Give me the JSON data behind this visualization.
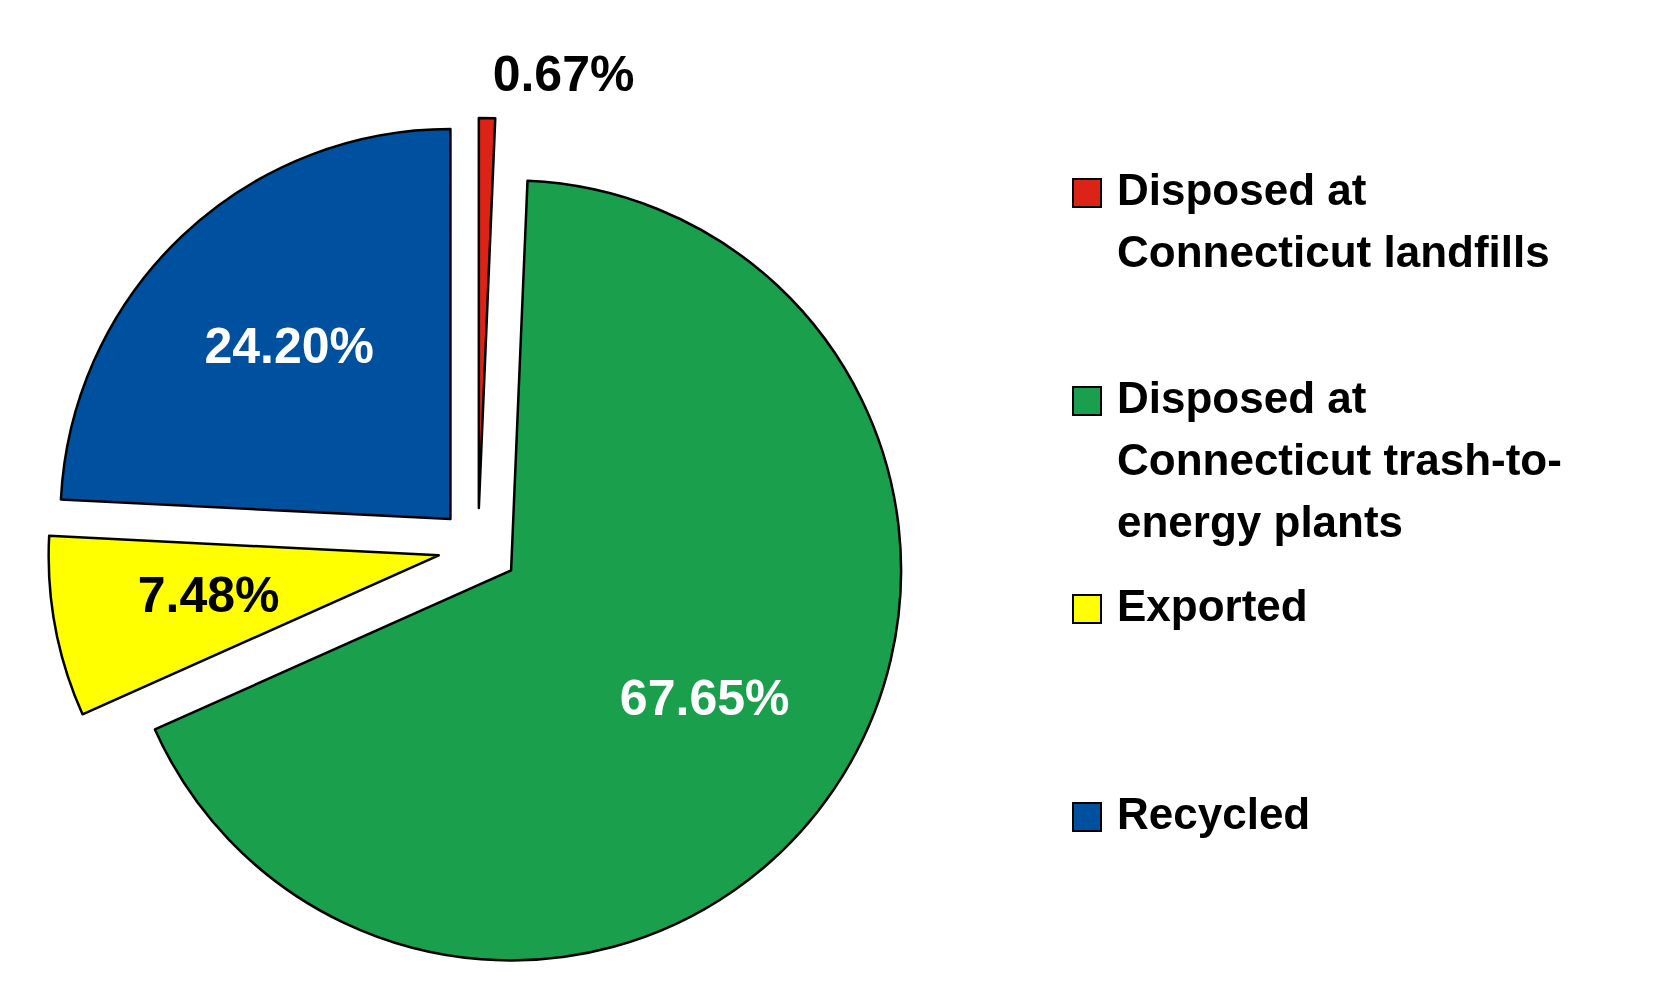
{
  "chart_data": {
    "type": "pie",
    "categories": [
      "Disposed at Connecticut landfills",
      "Disposed at Connecticut trash-to-energy plants",
      "Exported",
      "Recycled"
    ],
    "values": [
      0.67,
      67.65,
      7.48,
      24.2
    ],
    "colors": [
      "#dc2318",
      "#1a9f4c",
      "#ffff00",
      "#0050a0"
    ],
    "value_labels": [
      "0.67%",
      "67.65%",
      "7.48%",
      "24.20%"
    ],
    "legend": "right"
  }
}
